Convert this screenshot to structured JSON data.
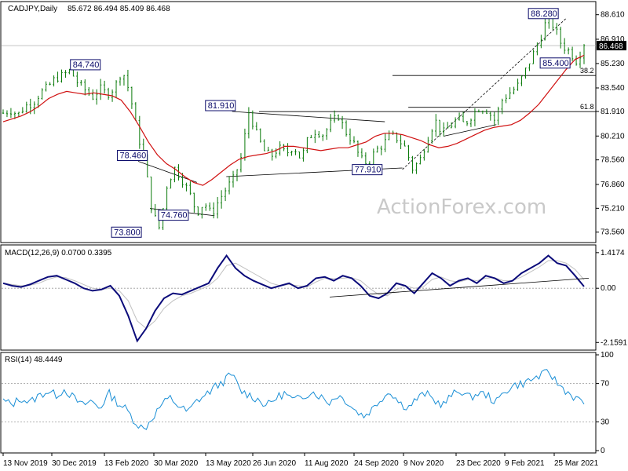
{
  "chart_data": [
    {
      "type": "candlestick",
      "title": "CADJPY,Daily",
      "ohlc_readout": "85.672 86.494 85.409 86.468",
      "watermark": "ActionForex.com",
      "ylim": [
        73.0,
        89.3
      ],
      "y_ticks": [
        "88.610",
        "86.910",
        "85.230",
        "83.540",
        "81.910",
        "80.210",
        "78.560",
        "76.860",
        "75.210",
        "73.560"
      ],
      "y_tick_values": [
        88.61,
        86.91,
        85.23,
        83.54,
        81.91,
        80.21,
        78.56,
        76.86,
        75.21,
        73.56
      ],
      "last_price": 86.468,
      "last_price_label": "86.468",
      "x_ticks": [
        "13 Nov 2019",
        "30 Dec 2019",
        "13 Feb 2020",
        "30 Mar 2020",
        "13 May 2020",
        "26 Jun 2020",
        "11 Aug 2020",
        "24 Sep 2020",
        "9 Nov 2020",
        "23 Dec 2020",
        "9 Feb 2021",
        "25 Mar 2021"
      ],
      "price_path": [
        81.8,
        82.0,
        81.7,
        82.3,
        82.5,
        83.2,
        83.6,
        84.2,
        84.4,
        84.74,
        83.9,
        83.4,
        82.9,
        83.5,
        83.1,
        83.6,
        84.8,
        83.2,
        80.5,
        78.46,
        75.0,
        73.8,
        76.8,
        78.0,
        77.2,
        76.3,
        74.9,
        75.6,
        74.76,
        75.8,
        76.6,
        77.3,
        78.8,
        81.91,
        80.4,
        79.2,
        78.8,
        79.4,
        79.0,
        79.5,
        78.6,
        80.1,
        80.6,
        80.3,
        81.1,
        81.6,
        80.5,
        79.8,
        78.6,
        78.3,
        79.2,
        79.6,
        80.3,
        80.0,
        79.4,
        77.91,
        78.6,
        80.1,
        81.3,
        80.4,
        80.9,
        81.4,
        81.0,
        81.7,
        82.2,
        82.0,
        81.3,
        82.7,
        83.2,
        83.6,
        84.6,
        85.7,
        86.8,
        88.28,
        87.8,
        86.5,
        86.1,
        85.4,
        86.468
      ],
      "ma_path": [
        81.2,
        81.4,
        81.6,
        81.9,
        82.3,
        82.8,
        83.1,
        83.3,
        83.2,
        83.1,
        83.2,
        83.1,
        83.0,
        82.7,
        81.9,
        80.9,
        79.8,
        78.9,
        78.3,
        77.9,
        77.4,
        77.0,
        76.8,
        77.2,
        77.7,
        78.2,
        78.6,
        78.8,
        78.9,
        79.0,
        79.2,
        79.5,
        79.5,
        79.4,
        79.3,
        79.2,
        79.3,
        79.4,
        79.4,
        79.6,
        79.8,
        80.2,
        80.4,
        80.4,
        80.3,
        80.1,
        79.9,
        79.6,
        79.4,
        79.5,
        79.7,
        80.0,
        80.3,
        80.6,
        80.8,
        80.9,
        81.0,
        81.3,
        81.8,
        82.4,
        83.2,
        84.0,
        84.8,
        85.5,
        85.8
      ],
      "annotations": [
        {
          "label": "84.740",
          "x_frac": 0.14,
          "y": 84.74
        },
        {
          "label": "78.460",
          "x_frac": 0.22,
          "y": 78.46
        },
        {
          "label": "73.800",
          "x_frac": 0.21,
          "y": 73.8
        },
        {
          "label": "74.760",
          "x_frac": 0.29,
          "y": 74.76
        },
        {
          "label": "81.910",
          "x_frac": 0.37,
          "y": 81.91
        },
        {
          "label": "77.910",
          "x_frac": 0.62,
          "y": 77.91
        },
        {
          "label": "88.280",
          "x_frac": 0.92,
          "y": 88.28
        },
        {
          "label": "85.400",
          "x_frac": 0.94,
          "y": 85.4
        }
      ],
      "fib_levels": [
        {
          "label": "38.2",
          "y": 84.4
        },
        {
          "label": "61.8",
          "y": 81.9
        }
      ]
    },
    {
      "type": "line",
      "title": "MACD(12,26,9) 0.0700 0.3395",
      "ylim": [
        -2.4,
        1.6
      ],
      "y_ticks": [
        "1.4174",
        "0.00",
        "-2.1591"
      ],
      "y_tick_values": [
        1.4174,
        0.0,
        -2.1591
      ],
      "macd_path": [
        0.2,
        0.1,
        0.05,
        0.15,
        0.3,
        0.45,
        0.5,
        0.35,
        0.2,
        0.0,
        -0.1,
        -0.05,
        0.1,
        -0.3,
        -1.1,
        -2.1,
        -1.6,
        -0.9,
        -0.4,
        -0.2,
        -0.25,
        -0.1,
        0.05,
        0.2,
        0.8,
        1.3,
        0.8,
        0.5,
        0.3,
        0.15,
        0.0,
        0.1,
        0.2,
        0.0,
        0.1,
        0.4,
        0.45,
        0.3,
        0.5,
        0.4,
        0.1,
        -0.3,
        -0.4,
        -0.2,
        0.2,
        0.1,
        -0.2,
        0.2,
        0.6,
        0.4,
        0.1,
        0.3,
        0.4,
        0.2,
        0.5,
        0.4,
        0.2,
        0.3,
        0.6,
        0.8,
        1.0,
        1.3,
        1.0,
        0.9,
        0.5,
        0.07
      ],
      "signal_path": [
        0.2,
        0.15,
        0.1,
        0.12,
        0.2,
        0.35,
        0.45,
        0.42,
        0.3,
        0.15,
        0.0,
        -0.05,
        0.0,
        -0.1,
        -0.5,
        -1.3,
        -1.6,
        -1.3,
        -0.8,
        -0.5,
        -0.3,
        -0.2,
        -0.05,
        0.1,
        0.4,
        0.9,
        1.0,
        0.8,
        0.6,
        0.4,
        0.2,
        0.1,
        0.15,
        0.1,
        0.05,
        0.25,
        0.4,
        0.38,
        0.4,
        0.42,
        0.3,
        0.0,
        -0.25,
        -0.3,
        -0.05,
        0.1,
        0.0,
        0.05,
        0.35,
        0.45,
        0.3,
        0.25,
        0.35,
        0.3,
        0.4,
        0.42,
        0.3,
        0.3,
        0.45,
        0.65,
        0.85,
        1.1,
        1.1,
        1.0,
        0.75,
        0.34
      ]
    },
    {
      "type": "line",
      "title": "RSI(14) 48.4449",
      "ylim": [
        0,
        100
      ],
      "y_ticks": [
        "100",
        "70",
        "30",
        "0"
      ],
      "y_tick_values": [
        100,
        70,
        30,
        0
      ],
      "rsi_path": [
        52,
        48,
        55,
        50,
        57,
        62,
        58,
        64,
        55,
        47,
        52,
        44,
        60,
        50,
        43,
        30,
        22,
        35,
        48,
        55,
        46,
        40,
        52,
        58,
        66,
        72,
        80,
        62,
        58,
        53,
        47,
        55,
        60,
        52,
        56,
        62,
        57,
        50,
        58,
        52,
        42,
        36,
        44,
        55,
        62,
        50,
        45,
        54,
        60,
        52,
        48,
        58,
        63,
        55,
        60,
        58,
        50,
        62,
        68,
        70,
        74,
        78,
        82,
        70,
        62,
        55,
        48.44
      ]
    }
  ]
}
